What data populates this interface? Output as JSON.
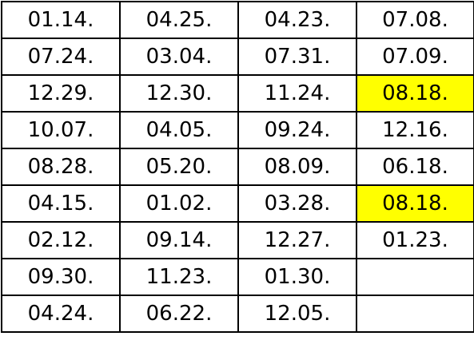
{
  "table": {
    "highlight_color": "#ffff00",
    "rows": [
      [
        {
          "text": "01.14."
        },
        {
          "text": "04.25."
        },
        {
          "text": "04.23."
        },
        {
          "text": "07.08."
        }
      ],
      [
        {
          "text": "07.24."
        },
        {
          "text": "03.04."
        },
        {
          "text": "07.31."
        },
        {
          "text": "07.09."
        }
      ],
      [
        {
          "text": "12.29."
        },
        {
          "text": "12.30."
        },
        {
          "text": "11.24."
        },
        {
          "text": "08.18.",
          "highlight": true
        }
      ],
      [
        {
          "text": "10.07."
        },
        {
          "text": "04.05."
        },
        {
          "text": "09.24."
        },
        {
          "text": "12.16."
        }
      ],
      [
        {
          "text": "08.28."
        },
        {
          "text": "05.20."
        },
        {
          "text": "08.09."
        },
        {
          "text": "06.18."
        }
      ],
      [
        {
          "text": "04.15."
        },
        {
          "text": "01.02."
        },
        {
          "text": "03.28."
        },
        {
          "text": "08.18.",
          "highlight": true
        }
      ],
      [
        {
          "text": "02.12."
        },
        {
          "text": "09.14."
        },
        {
          "text": "12.27."
        },
        {
          "text": "01.23."
        }
      ],
      [
        {
          "text": "09.30."
        },
        {
          "text": "11.23."
        },
        {
          "text": "01.30."
        },
        {
          "text": ""
        }
      ],
      [
        {
          "text": "04.24."
        },
        {
          "text": "06.22."
        },
        {
          "text": "12.05."
        },
        {
          "text": ""
        }
      ]
    ]
  }
}
